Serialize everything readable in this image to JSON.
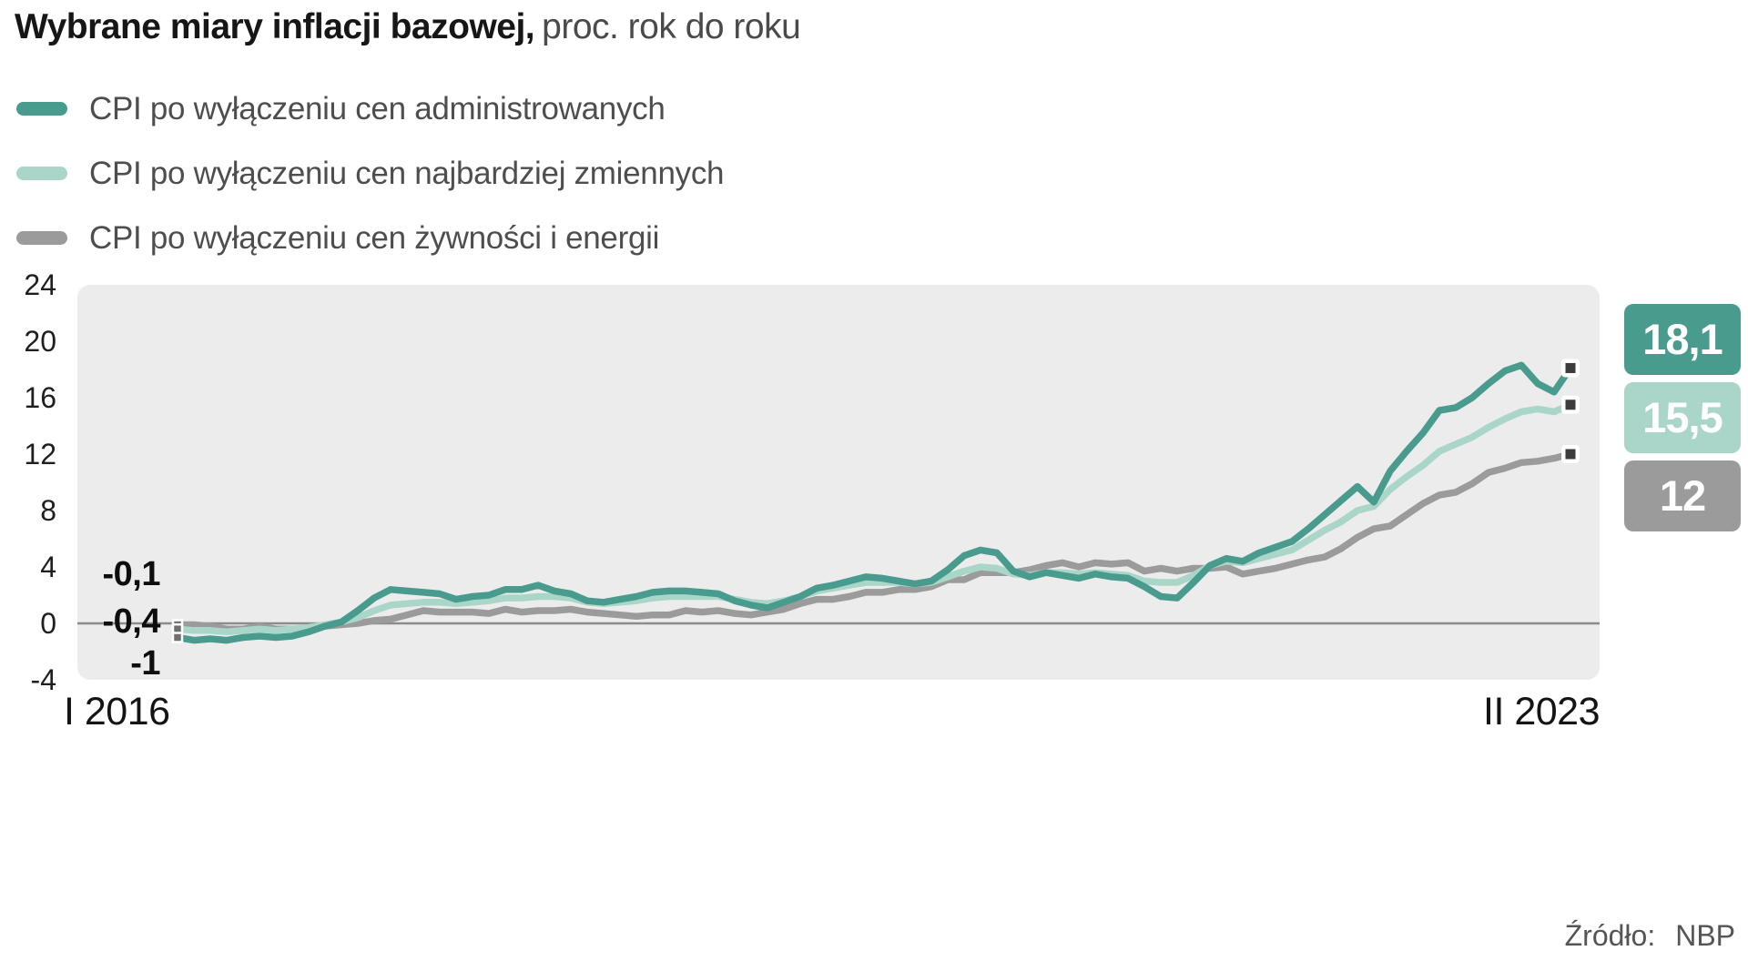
{
  "chart_data": {
    "type": "line",
    "title": "Wybrane miary inflacji bazowej,",
    "subtitle": "proc. rok do roku",
    "source_label": "Źródło:",
    "source_value": "NBP",
    "x_start_label": "I 2016",
    "x_end_label": "II 2023",
    "x": {
      "start": "2016-01",
      "end": "2023-02",
      "freq": "monthly"
    },
    "ylim": [
      -4,
      24
    ],
    "yticks": [
      24,
      20,
      16,
      12,
      8,
      4,
      0,
      -4
    ],
    "grid": "none",
    "legend_position": "top-left",
    "start_labels": [
      "-0,1",
      "-0,4",
      "-1"
    ],
    "series": [
      {
        "name": "CPI po wyłączeniu cen administrowanych",
        "color": "#489b8d",
        "start_value": -1.0,
        "end_value": 18.1,
        "end_label": "18,1",
        "values": [
          -1.0,
          -1.2,
          -1.1,
          -1.2,
          -1.0,
          -0.9,
          -1.0,
          -0.9,
          -0.6,
          -0.2,
          0.1,
          0.9,
          1.8,
          2.4,
          2.3,
          2.2,
          2.1,
          1.7,
          1.9,
          2.0,
          2.4,
          2.4,
          2.7,
          2.3,
          2.1,
          1.6,
          1.5,
          1.7,
          1.9,
          2.2,
          2.3,
          2.3,
          2.2,
          2.1,
          1.6,
          1.3,
          1.1,
          1.5,
          1.9,
          2.5,
          2.7,
          3.0,
          3.3,
          3.2,
          3.0,
          2.8,
          3.0,
          3.8,
          4.8,
          5.2,
          5.0,
          3.7,
          3.3,
          3.6,
          3.4,
          3.2,
          3.5,
          3.3,
          3.2,
          2.6,
          1.9,
          1.8,
          2.9,
          4.1,
          4.6,
          4.4,
          5.0,
          5.4,
          5.8,
          6.7,
          7.7,
          8.7,
          9.7,
          8.6,
          10.8,
          12.2,
          13.5,
          15.1,
          15.3,
          16.0,
          17.0,
          17.9,
          18.3,
          17.0,
          16.4,
          18.1
        ]
      },
      {
        "name": "CPI po wyłączeniu cen najbardziej zmiennych",
        "color": "#a9d6c8",
        "start_value": -0.4,
        "end_value": 15.5,
        "end_label": "15,5",
        "values": [
          -0.4,
          -0.5,
          -0.5,
          -0.6,
          -0.5,
          -0.4,
          -0.5,
          -0.4,
          -0.3,
          -0.1,
          0.1,
          0.4,
          0.9,
          1.3,
          1.4,
          1.5,
          1.5,
          1.4,
          1.5,
          1.6,
          1.8,
          1.8,
          1.9,
          1.9,
          1.8,
          1.5,
          1.4,
          1.5,
          1.6,
          1.8,
          1.9,
          1.9,
          1.9,
          1.9,
          1.7,
          1.5,
          1.4,
          1.6,
          1.9,
          2.3,
          2.5,
          2.7,
          2.9,
          2.9,
          2.9,
          2.8,
          2.9,
          3.3,
          3.7,
          4.0,
          3.9,
          3.5,
          3.4,
          3.6,
          3.6,
          3.5,
          3.6,
          3.5,
          3.4,
          3.0,
          2.9,
          2.9,
          3.4,
          4.1,
          4.4,
          4.3,
          4.6,
          4.9,
          5.2,
          5.9,
          6.6,
          7.2,
          8.0,
          8.3,
          9.5,
          10.4,
          11.2,
          12.2,
          12.7,
          13.2,
          13.9,
          14.5,
          15.0,
          15.2,
          15.0,
          15.5
        ]
      },
      {
        "name": "CPI po wyłączeniu cen żywności i energii",
        "color": "#9b9b9b",
        "start_value": -0.1,
        "end_value": 12.0,
        "end_label": "12",
        "values": [
          -0.1,
          -0.1,
          -0.2,
          -0.4,
          -0.4,
          -0.2,
          -0.4,
          -0.4,
          -0.4,
          -0.2,
          -0.1,
          0.0,
          0.2,
          0.3,
          0.6,
          0.9,
          0.8,
          0.8,
          0.8,
          0.7,
          1.0,
          0.8,
          0.9,
          0.9,
          1.0,
          0.8,
          0.7,
          0.6,
          0.5,
          0.6,
          0.6,
          0.9,
          0.8,
          0.9,
          0.7,
          0.6,
          0.8,
          1.0,
          1.4,
          1.7,
          1.7,
          1.9,
          2.2,
          2.2,
          2.4,
          2.4,
          2.6,
          3.1,
          3.1,
          3.6,
          3.6,
          3.6,
          3.8,
          4.1,
          4.3,
          4.0,
          4.3,
          4.2,
          4.3,
          3.7,
          3.9,
          3.7,
          3.9,
          3.9,
          4.0,
          3.5,
          3.7,
          3.9,
          4.2,
          4.5,
          4.7,
          5.3,
          6.1,
          6.7,
          6.9,
          7.7,
          8.5,
          9.1,
          9.3,
          9.9,
          10.7,
          11.0,
          11.4,
          11.5,
          11.7,
          12.0
        ]
      }
    ]
  }
}
